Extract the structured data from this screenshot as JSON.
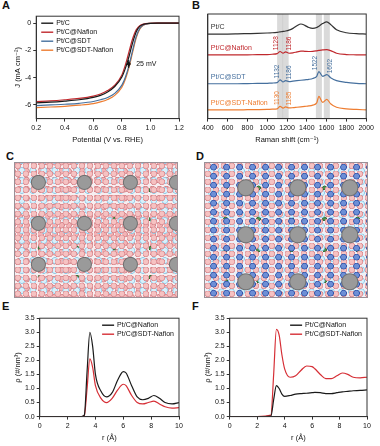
{
  "chart_data": [
    {
      "panel": "A",
      "type": "line",
      "x_label": "Potential (V vs. RHE)",
      "y_label": "J (mA cm⁻²)",
      "x": [
        0.2,
        0.3,
        0.4,
        0.5,
        0.6,
        0.65,
        0.7,
        0.75,
        0.8,
        0.825,
        0.85,
        0.875,
        0.9,
        0.925,
        0.95,
        1.0,
        1.05,
        1.1,
        1.2
      ],
      "series": [
        {
          "name": "Pt/C",
          "color": "#1a1a1a",
          "values": [
            -5.85,
            -5.8,
            -5.72,
            -5.62,
            -5.45,
            -5.3,
            -5.05,
            -4.65,
            -3.95,
            -3.3,
            -2.45,
            -1.45,
            -0.65,
            -0.25,
            -0.1,
            -0.02,
            0,
            0,
            0
          ]
        },
        {
          "name": "Pt/C@Nafion",
          "color": "#c0282d",
          "values": [
            -5.75,
            -5.7,
            -5.62,
            -5.52,
            -5.35,
            -5.2,
            -4.95,
            -4.55,
            -3.8,
            -3.05,
            -2.1,
            -1.15,
            -0.5,
            -0.2,
            -0.08,
            -0.02,
            0,
            0,
            0
          ]
        },
        {
          "name": "Pt/C@SDT",
          "color": "#46709e",
          "values": [
            -6.05,
            -6.0,
            -5.95,
            -5.88,
            -5.75,
            -5.62,
            -5.45,
            -5.15,
            -4.55,
            -3.95,
            -3.1,
            -2.0,
            -1.0,
            -0.4,
            -0.15,
            -0.03,
            0,
            0,
            0
          ]
        },
        {
          "name": "Pt/C@SDT-Nafion",
          "color": "#ee7d31",
          "values": [
            -6.2,
            -6.15,
            -6.1,
            -6.02,
            -5.9,
            -5.78,
            -5.6,
            -5.3,
            -4.7,
            -4.1,
            -3.25,
            -2.15,
            -1.1,
            -0.45,
            -0.17,
            -0.03,
            0,
            0,
            0
          ]
        }
      ],
      "xlim": [
        0.2,
        1.2
      ],
      "xticks": [
        0.2,
        0.4,
        0.6,
        0.8,
        {
          "value": 1,
          "label": "1.0"
        },
        1.2
      ],
      "ylim": [
        -7,
        0.5
      ],
      "yticks": [
        -6,
        -4,
        -2,
        0
      ],
      "grid": false,
      "legend": "upper left",
      "annotations": [
        {
          "text": "25 mV",
          "x": 0.9,
          "y": -3.0,
          "x_range": [
            0.835,
            0.86
          ]
        }
      ]
    },
    {
      "panel": "B",
      "type": "line",
      "x_label": "Raman shift (cm⁻¹)",
      "x": [
        400,
        500,
        600,
        700,
        800,
        900,
        1000,
        1050,
        1100,
        1130,
        1160,
        1186,
        1220,
        1260,
        1300,
        1340,
        1380,
        1420,
        1460,
        1500,
        1522,
        1560,
        1602,
        1640,
        1700,
        1800,
        1900,
        2000
      ],
      "series": [
        {
          "name": "Pt/C",
          "color": "#333333",
          "values": [
            9.7,
            9.7,
            9.7,
            9.72,
            9.75,
            9.78,
            9.82,
            9.85,
            9.9,
            9.95,
            10.0,
            10.05,
            10.15,
            10.35,
            10.65,
            10.85,
            10.7,
            10.45,
            10.35,
            10.45,
            10.6,
            10.9,
            11.1,
            10.8,
            10.2,
            9.85,
            9.75,
            9.7
          ]
        },
        {
          "name": "Pt/C@Nafion",
          "color": "#c0282d",
          "values": [
            7.3,
            7.3,
            7.3,
            7.3,
            7.32,
            7.33,
            7.35,
            7.38,
            7.45,
            7.7,
            7.5,
            7.65,
            7.5,
            7.55,
            7.65,
            7.75,
            7.72,
            7.7,
            7.72,
            7.78,
            7.82,
            7.88,
            7.92,
            7.8,
            7.5,
            7.35,
            7.32,
            7.3
          ]
        },
        {
          "name": "Pt/C@SDT",
          "color": "#46709e",
          "values": [
            4.0,
            4.0,
            4.0,
            4.0,
            4.02,
            4.03,
            4.05,
            4.08,
            4.12,
            4.45,
            4.2,
            4.35,
            4.25,
            4.3,
            4.35,
            4.4,
            4.45,
            4.5,
            4.6,
            4.85,
            5.4,
            4.85,
            5.05,
            4.7,
            4.35,
            4.15,
            4.05,
            4.0
          ]
        },
        {
          "name": "Pt/C@SDT-Nafion",
          "color": "#ee7d31",
          "values": [
            1.0,
            1.0,
            1.0,
            1.0,
            1.02,
            1.03,
            1.05,
            1.08,
            1.12,
            1.4,
            1.2,
            1.35,
            1.22,
            1.25,
            1.3,
            1.35,
            1.4,
            1.45,
            1.55,
            1.8,
            2.55,
            1.85,
            2.2,
            1.7,
            1.3,
            1.12,
            1.05,
            1.0
          ]
        }
      ],
      "xlim": [
        400,
        2000
      ],
      "xticks": [
        400,
        600,
        800,
        1000,
        1200,
        1400,
        1600,
        1800,
        2000
      ],
      "ylim": [
        0,
        12
      ],
      "tick_labels": "x",
      "grid": false,
      "bands": [
        1130,
        1186,
        1522,
        1602
      ],
      "annotations": [
        {
          "text": "1128",
          "x": 1128,
          "y": 7.85,
          "color": "#c0282d"
        },
        {
          "text": "1186",
          "x": 1186,
          "y": 7.8,
          "color": "#c0282d"
        },
        {
          "text": "1132",
          "x": 1132,
          "y": 4.6,
          "color": "#46709e"
        },
        {
          "text": "1186",
          "x": 1186,
          "y": 4.5,
          "color": "#46709e"
        },
        {
          "text": "1522",
          "x": 1522,
          "y": 5.55,
          "color": "#46709e"
        },
        {
          "text": "1602",
          "x": 1602,
          "y": 5.2,
          "color": "#46709e"
        },
        {
          "text": "1130",
          "x": 1130,
          "y": 1.55,
          "color": "#ee7d31"
        },
        {
          "text": "1185",
          "x": 1185,
          "y": 1.5,
          "color": "#ee7d31"
        }
      ]
    },
    {
      "panel": "E",
      "type": "line",
      "x_label": "r (Å)",
      "y_label": "ρ (#/nm³)",
      "x": [
        0,
        1,
        2,
        3,
        3.2,
        3.4,
        3.6,
        3.8,
        4.0,
        4.4,
        4.8,
        5.2,
        5.6,
        6.0,
        6.2,
        6.6,
        7.0,
        7.4,
        7.8,
        8.2,
        8.6,
        9.0,
        9.5,
        10
      ],
      "series": [
        {
          "name": "Pt/C@Nafion",
          "color": "#1a1a1a",
          "values": [
            0,
            0,
            0,
            0,
            0.05,
            1.6,
            3.0,
            2.5,
            1.5,
            0.9,
            0.7,
            0.85,
            1.3,
            1.6,
            1.55,
            1.1,
            0.7,
            0.6,
            0.65,
            0.75,
            0.65,
            0.5,
            0.45,
            0.5
          ]
        },
        {
          "name": "Pt/C@SDT-Nafion",
          "color": "#d62f36",
          "values": [
            0,
            0,
            0,
            0,
            0.03,
            1.0,
            2.05,
            1.75,
            1.1,
            0.65,
            0.5,
            0.65,
            0.95,
            1.15,
            1.1,
            0.75,
            0.5,
            0.45,
            0.5,
            0.55,
            0.45,
            0.35,
            0.3,
            0.32
          ]
        }
      ],
      "xlim": [
        0,
        10
      ],
      "xticks": [
        0,
        2,
        4,
        6,
        8,
        10
      ],
      "ylim": [
        0,
        3.5
      ],
      "yticks": [
        {
          "value": 0,
          "label": "0.0"
        },
        0.5,
        {
          "value": 1,
          "label": "1.0"
        },
        1.5,
        {
          "value": 2,
          "label": "2.0"
        },
        2.5,
        {
          "value": 3,
          "label": "3.0"
        },
        3.5
      ],
      "grid": false,
      "legend": "upper right"
    },
    {
      "panel": "F",
      "type": "line",
      "x_label": "r (Å)",
      "y_label": "ρ (#/nm³)",
      "x": [
        0,
        1,
        2,
        3,
        3.2,
        3.4,
        3.6,
        3.8,
        4.0,
        4.4,
        4.8,
        5.2,
        5.6,
        6.0,
        6.2,
        6.6,
        7.0,
        7.4,
        7.8,
        8.2,
        8.6,
        9.0,
        9.5,
        10
      ],
      "series": [
        {
          "name": "Pt/C@Nafion",
          "color": "#1a1a1a",
          "values": [
            0,
            0,
            0,
            0.02,
            0.6,
            1.1,
            1.0,
            0.8,
            0.72,
            0.75,
            0.8,
            0.82,
            0.83,
            0.85,
            0.86,
            0.85,
            0.82,
            0.82,
            0.85,
            0.88,
            0.9,
            0.92,
            0.93,
            0.95
          ]
        },
        {
          "name": "Pt/C@SDT-Nafion",
          "color": "#d62f36",
          "values": [
            0,
            0,
            0,
            0.05,
            1.5,
            3.1,
            2.9,
            2.2,
            1.7,
            1.4,
            1.45,
            1.65,
            1.8,
            1.78,
            1.7,
            1.5,
            1.35,
            1.35,
            1.45,
            1.55,
            1.5,
            1.4,
            1.38,
            1.4
          ]
        }
      ],
      "xlim": [
        0,
        10
      ],
      "xticks": [
        0,
        2,
        4,
        6,
        8,
        10
      ],
      "ylim": [
        0,
        3.5
      ],
      "yticks": [
        {
          "value": 0,
          "label": "0.0"
        },
        0.5,
        {
          "value": 1,
          "label": "1.0"
        },
        1.5,
        {
          "value": 2,
          "label": "2.0"
        },
        2.5,
        {
          "value": 3,
          "label": "3.0"
        },
        3.5
      ],
      "grid": false,
      "legend": "upper right"
    }
  ],
  "images": [
    {
      "panel": "C"
    },
    {
      "panel": "D"
    }
  ]
}
